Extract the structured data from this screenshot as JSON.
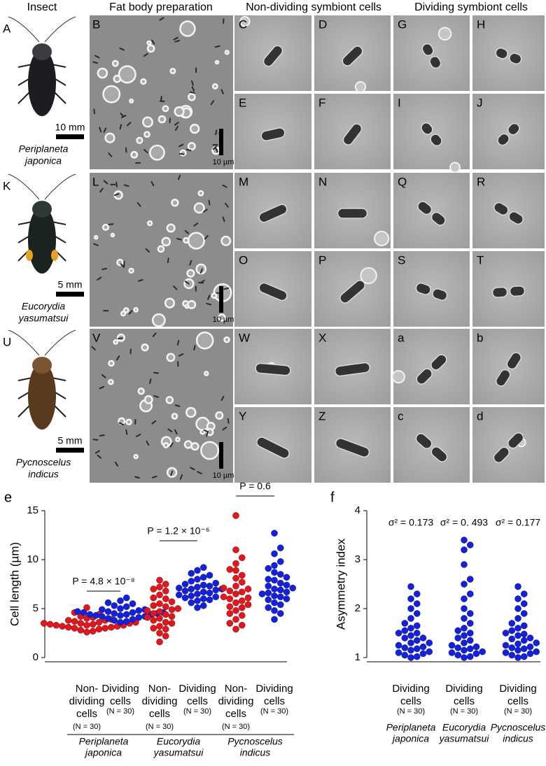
{
  "figure": {
    "column_headers": [
      "Insect",
      "Fat body preparation",
      "Non-dividing symbiont cells",
      "Dividing symbiont cells"
    ],
    "rows": [
      {
        "insect_letter": "A",
        "insect_scale": "10 mm",
        "species": [
          "Periplaneta",
          "japonica"
        ],
        "fat_letter": "B",
        "fat_scale": "10 µm",
        "cell_letters": [
          [
            "C",
            "D",
            "G",
            "H"
          ],
          [
            "E",
            "F",
            "I",
            "J"
          ]
        ]
      },
      {
        "insect_letter": "K",
        "insect_scale": "5 mm",
        "species": [
          "Eucorydia",
          "yasumatsui"
        ],
        "fat_letter": "L",
        "fat_scale": "10 µm",
        "cell_letters": [
          [
            "M",
            "N",
            "Q",
            "R"
          ],
          [
            "O",
            "P",
            "S",
            "T"
          ]
        ]
      },
      {
        "insect_letter": "U",
        "insect_scale": "5 mm",
        "species": [
          "Pycnoscelus",
          "indicus"
        ],
        "fat_letter": "V",
        "fat_scale": "10 µm",
        "cell_letters": [
          [
            "W",
            "X",
            "a",
            "b"
          ],
          [
            "Y",
            "Z",
            "c",
            "d"
          ]
        ]
      }
    ]
  },
  "chart_data": [
    {
      "type": "scatter",
      "panel_label": "e",
      "ylabel": "Cell length (µm)",
      "ylim": [
        0,
        15
      ],
      "yticks": [
        0,
        5,
        10,
        15
      ],
      "groups": [
        {
          "label": [
            "Non-",
            "dividing",
            "cells"
          ],
          "n_label": "(N = 30)",
          "color": "#e8141b",
          "values": [
            3.3,
            3.5,
            2.6,
            3.0,
            3.8,
            4.1,
            3.2,
            3.6,
            2.8,
            3.4,
            3.9,
            3.1,
            4.4,
            3.7,
            2.9,
            3.5,
            3.3,
            5.1,
            4.0,
            3.2,
            3.6,
            2.7,
            3.4,
            3.0,
            3.8,
            4.2,
            3.5,
            3.1,
            3.3,
            4.6
          ]
        },
        {
          "label": [
            "Dividing",
            "cells"
          ],
          "n_label": "(N = 30)",
          "color": "#1420e0",
          "values": [
            4.5,
            4.2,
            3.8,
            4.9,
            5.2,
            4.4,
            3.6,
            4.7,
            5.5,
            4.1,
            4.6,
            6.1,
            4.3,
            3.9,
            4.8,
            5.0,
            4.4,
            4.2,
            5.6,
            4.6,
            3.7,
            4.5,
            4.9,
            4.3,
            5.3,
            4.0,
            4.7,
            4.4,
            5.8,
            4.6
          ]
        },
        {
          "label": [
            "Non-",
            "dividing",
            "cells"
          ],
          "n_label": "(N = 30)",
          "color": "#e8141b",
          "values": [
            4.8,
            5.5,
            3.2,
            6.1,
            7.9,
            4.2,
            2.5,
            5.0,
            3.8,
            6.8,
            4.5,
            1.6,
            5.3,
            7.2,
            3.5,
            4.9,
            2.9,
            6.4,
            4.1,
            7.5,
            3.0,
            5.7,
            4.4,
            2.2,
            6.0,
            4.7,
            3.6,
            5.2,
            7.0,
            4.0
          ]
        },
        {
          "label": [
            "Dividing",
            "cells"
          ],
          "n_label": "(N = 30)",
          "color": "#1420e0",
          "values": [
            7.0,
            6.2,
            8.4,
            5.3,
            7.6,
            6.8,
            9.2,
            5.9,
            7.3,
            6.5,
            8.0,
            5.1,
            7.1,
            6.9,
            8.6,
            6.0,
            7.4,
            5.6,
            6.7,
            7.8,
            8.2,
            6.3,
            7.0,
            5.8,
            7.5,
            6.6,
            8.9,
            6.1,
            7.2,
            6.4
          ]
        },
        {
          "label": [
            "Non-",
            "dividing",
            "cells"
          ],
          "n_label": "(N = 30)",
          "color": "#e8141b",
          "values": [
            6.2,
            8.4,
            14.5,
            4.3,
            7.1,
            10.2,
            3.5,
            5.6,
            9.0,
            6.8,
            2.9,
            7.7,
            5.1,
            6.0,
            8.9,
            4.8,
            11.0,
            6.5,
            3.9,
            7.3,
            5.4,
            9.6,
            6.1,
            4.5,
            8.1,
            5.8,
            7.0,
            3.3,
            6.7,
            5.2
          ]
        },
        {
          "label": [
            "Dividing",
            "cells"
          ],
          "n_label": "(N = 30)",
          "color": "#1420e0",
          "values": [
            7.3,
            6.5,
            9.8,
            5.4,
            8.0,
            12.7,
            6.9,
            4.5,
            7.6,
            10.6,
            5.9,
            8.5,
            6.3,
            7.1,
            3.9,
            9.1,
            6.7,
            5.1,
            7.9,
            11.2,
            6.0,
            8.2,
            7.4,
            5.6,
            6.6,
            9.4,
            4.8,
            7.0,
            8.7,
            6.2
          ]
        }
      ],
      "species": [
        [
          "Periplaneta",
          "japonica"
        ],
        [
          "Eucorydia",
          "yasumatsui"
        ],
        [
          "Pycnoscelus",
          "indicus"
        ]
      ],
      "annotations": [
        "P = 4.8 × 10⁻⁸",
        "P = 1.2 × 10⁻⁶",
        "P = 0.6"
      ]
    },
    {
      "type": "scatter",
      "panel_label": "f",
      "ylabel": "Asymmetry index",
      "ylim": [
        1,
        4
      ],
      "yticks": [
        1,
        2,
        3,
        4
      ],
      "groups": [
        {
          "label": [
            "Dividing",
            "cells"
          ],
          "n_label": "(N = 30)",
          "color": "#1420e0",
          "values": [
            1.05,
            1.1,
            1.2,
            1.3,
            1.4,
            1.5,
            1.6,
            1.7,
            1.8,
            2.0,
            2.2,
            2.45,
            1.15,
            1.25,
            1.35,
            1.45,
            1.55,
            1.65,
            1.9,
            2.1,
            2.3,
            1.08,
            1.12,
            1.18,
            1.22,
            1.3,
            1.4,
            1.0,
            1.02,
            1.5
          ]
        },
        {
          "label": [
            "Dividing",
            "cells"
          ],
          "n_label": "(N = 30)",
          "color": "#1420e0",
          "values": [
            1.0,
            1.05,
            1.1,
            1.2,
            1.3,
            1.4,
            1.5,
            1.7,
            2.0,
            2.3,
            2.6,
            2.9,
            3.2,
            3.4,
            3.3,
            1.15,
            1.25,
            1.35,
            1.6,
            1.8,
            2.2,
            1.02,
            1.08,
            1.12,
            1.18,
            1.22,
            1.45,
            1.55,
            2.5,
            1.9
          ]
        },
        {
          "label": [
            "Dividing",
            "cells"
          ],
          "n_label": "(N = 30)",
          "color": "#1420e0",
          "values": [
            1.02,
            1.05,
            1.1,
            1.15,
            1.2,
            1.3,
            1.4,
            1.5,
            1.6,
            1.8,
            2.0,
            2.2,
            2.45,
            1.12,
            1.25,
            1.35,
            1.45,
            1.55,
            1.7,
            1.9,
            2.1,
            2.3,
            1.08,
            1.18,
            1.22,
            1.28,
            1.38,
            1.48,
            1.0,
            1.65
          ]
        }
      ],
      "species": [
        [
          "Periplaneta",
          "japonica"
        ],
        [
          "Eucorydia",
          "yasumatsui"
        ],
        [
          "Pycnoscelus",
          "indicus"
        ]
      ],
      "annotations": [
        "σ² = 0.173",
        "σ² = 0. 493",
        "σ² = 0.177"
      ]
    }
  ]
}
